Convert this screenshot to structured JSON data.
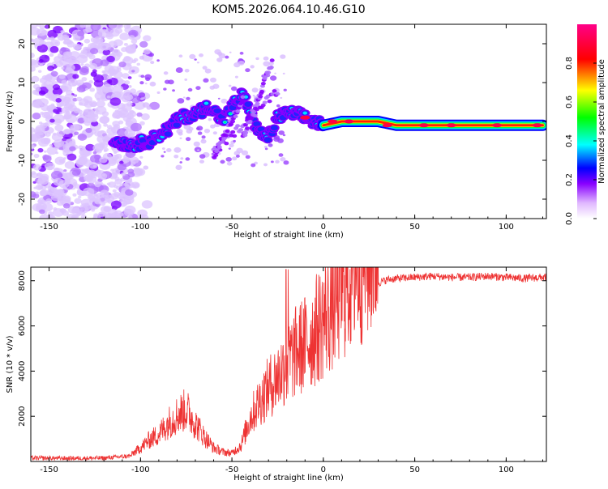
{
  "title": "KOM5.2026.064.10.46.G10",
  "chart_data": [
    {
      "type": "heatmap",
      "xlabel": "Height of straight line (km)",
      "ylabel": "Frequency (Hz)",
      "xlim": [
        -160,
        122
      ],
      "ylim": [
        -25,
        25
      ],
      "xticks": [
        -150,
        -100,
        -50,
        0,
        50,
        100
      ],
      "yticks": [
        -20,
        -10,
        0,
        10,
        20
      ],
      "colorbar": {
        "label": "Normalized spectral amplitude",
        "range": [
          0,
          1
        ],
        "ticks": [
          "0.0",
          "0.2",
          "0.4",
          "0.6",
          "0.8"
        ],
        "colors": [
          "#ffffff",
          "#8800ff",
          "#0000ff",
          "#00ffff",
          "#00ff00",
          "#ffff00",
          "#ff0000",
          "#ff0088"
        ]
      },
      "ridge": {
        "x": [
          -115,
          -105,
          -95,
          -85,
          -78,
          -70,
          -62,
          -55,
          -48,
          -44,
          -40,
          -35,
          -30,
          -25,
          -20,
          -15,
          -10,
          -5,
          0,
          10,
          20,
          30,
          40,
          50,
          60,
          70,
          80,
          90,
          100,
          110,
          120
        ],
        "y": [
          -5,
          -6,
          -5,
          -2,
          1,
          2,
          4,
          0,
          5,
          7,
          2,
          -3,
          -4,
          1,
          2,
          2,
          1,
          0,
          -1,
          0,
          0,
          0,
          -1,
          -1,
          -1,
          -1,
          -1,
          -1,
          -1,
          -1,
          -1
        ]
      }
    },
    {
      "type": "line",
      "xlabel": "Height of straight line (km)",
      "ylabel": "SNR (10 * v/v)",
      "xlim": [
        -160,
        122
      ],
      "ylim": [
        0,
        8600
      ],
      "xticks": [
        -150,
        -100,
        -50,
        0,
        50,
        100
      ],
      "yticks": [
        2000,
        4000,
        6000,
        8000
      ],
      "series": [
        {
          "name": "SNR",
          "color": "#ee3333",
          "x": [
            -160,
            -140,
            -120,
            -105,
            -100,
            -95,
            -90,
            -85,
            -80,
            -75,
            -70,
            -65,
            -60,
            -55,
            -50,
            -45,
            -40,
            -35,
            -30,
            -25,
            -20,
            -15,
            -10,
            -5,
            0,
            5,
            10,
            15,
            20,
            25,
            30,
            35,
            40,
            50,
            60,
            70,
            80,
            90,
            100,
            110,
            120
          ],
          "y": [
            150,
            140,
            150,
            250,
            500,
            800,
            1000,
            1400,
            1700,
            1900,
            1400,
            900,
            500,
            350,
            300,
            600,
            1600,
            2200,
            2700,
            3100,
            3600,
            4000,
            4300,
            4700,
            5200,
            5700,
            6300,
            6900,
            7300,
            7700,
            7900,
            8050,
            8100,
            8150,
            8200,
            8150,
            8150,
            8200,
            8150,
            8100,
            8150
          ]
        }
      ]
    }
  ]
}
